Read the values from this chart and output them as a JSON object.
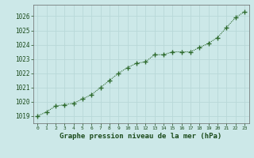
{
  "x": [
    0,
    1,
    2,
    3,
    4,
    5,
    6,
    7,
    8,
    9,
    10,
    11,
    12,
    13,
    14,
    15,
    16,
    17,
    18,
    19,
    20,
    21,
    22,
    23
  ],
  "y": [
    1019.0,
    1019.3,
    1019.7,
    1019.8,
    1019.9,
    1020.2,
    1020.5,
    1021.0,
    1021.5,
    1022.0,
    1022.4,
    1022.7,
    1022.8,
    1023.3,
    1023.3,
    1023.5,
    1023.5,
    1023.5,
    1023.8,
    1024.1,
    1024.5,
    1025.2,
    1025.9,
    1026.3
  ],
  "line_color": "#2d6a2d",
  "marker": "+",
  "marker_color": "#2d6a2d",
  "bg_color": "#cce8e8",
  "grid_color": "#b8d8d8",
  "xlabel": "Graphe pression niveau de la mer (hPa)",
  "xlabel_color": "#1a4a1a",
  "tick_color": "#1a4a1a",
  "ylim": [
    1018.5,
    1026.8
  ],
  "yticks": [
    1019,
    1020,
    1021,
    1022,
    1023,
    1024,
    1025,
    1026
  ],
  "xticks": [
    0,
    1,
    2,
    3,
    4,
    5,
    6,
    7,
    8,
    9,
    10,
    11,
    12,
    13,
    14,
    15,
    16,
    17,
    18,
    19,
    20,
    21,
    22,
    23
  ],
  "linewidth": 0.8,
  "markersize": 4
}
